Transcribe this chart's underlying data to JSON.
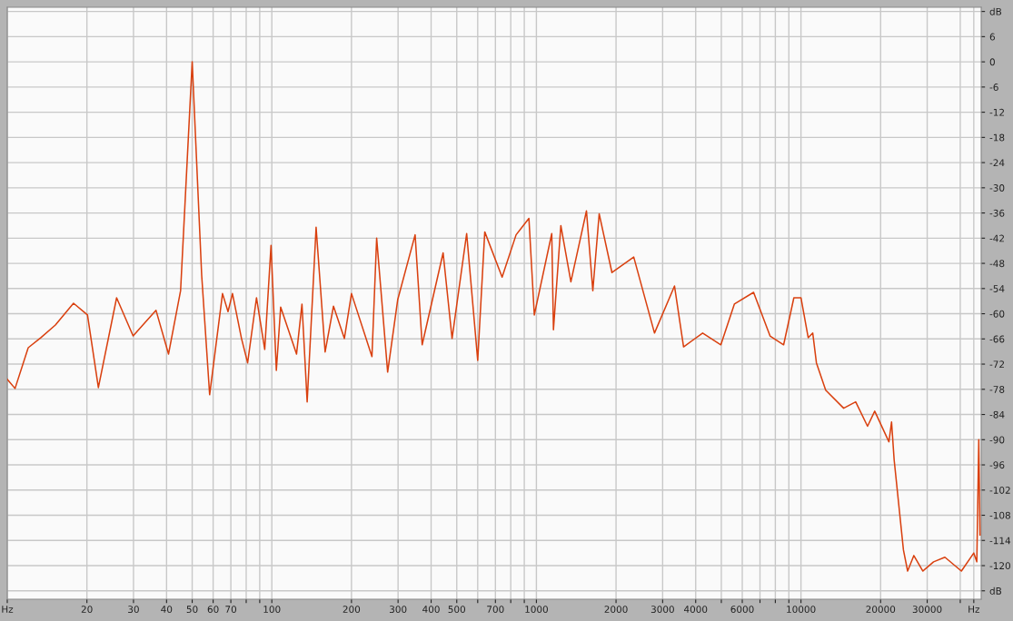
{
  "chart_data": {
    "type": "line",
    "log": "x",
    "grid": true,
    "legend": false,
    "marker": "none",
    "line_style": "solid",
    "xlim": [
      10,
      48000
    ],
    "ylim": [
      -128,
      13
    ],
    "xticks": [
      {
        "value": 10,
        "label": "Hz"
      },
      20,
      30,
      40,
      50,
      60,
      70,
      {
        "value": 80,
        "label": null
      },
      {
        "value": 90,
        "label": null
      },
      100,
      200,
      300,
      400,
      500,
      {
        "value": 600,
        "label": null
      },
      700,
      {
        "value": 800,
        "label": null
      },
      {
        "value": 900,
        "label": null
      },
      1000,
      2000,
      3000,
      4000,
      {
        "value": 5000,
        "label": null
      },
      6000,
      {
        "value": 7000,
        "label": null
      },
      {
        "value": 8000,
        "label": null
      },
      {
        "value": 9000,
        "label": null
      },
      10000,
      20000,
      30000,
      {
        "value": 40000,
        "label": null
      },
      {
        "value": 45000,
        "label": "Hz"
      }
    ],
    "yticks": [
      {
        "value": 12,
        "label": "dB"
      },
      6,
      0,
      -6,
      -12,
      -18,
      -24,
      -30,
      -36,
      -42,
      -48,
      -54,
      -60,
      -66,
      -72,
      -78,
      -84,
      -90,
      -96,
      -102,
      -108,
      -114,
      -120,
      {
        "value": -126,
        "label": "dB"
      }
    ],
    "series": [
      {
        "color": "#d9400f",
        "x": [
          10,
          10.7,
          12.0,
          13.4,
          15.2,
          17.8,
          20.1,
          22.1,
          25.9,
          29.9,
          33.7,
          36.5,
          40.7,
          45.2,
          50,
          54.3,
          58.2,
          65.1,
          68.3,
          71,
          76.8,
          81,
          87.5,
          94,
          99.3,
          104,
          108,
          124,
          130,
          136,
          147,
          159,
          171,
          188,
          200,
          239,
          249,
          274,
          299,
          348,
          370,
          444,
          480,
          545,
          600,
          638,
          742,
          838,
          937,
          982,
          1143,
          1160,
          1237,
          1350,
          1546,
          1634,
          1727,
          1930,
          2333,
          2795,
          3327,
          3600,
          4250,
          4980,
          5600,
          6620,
          7640,
          8600,
          9400,
          10000,
          10650,
          11080,
          11440,
          12400,
          14500,
          16100,
          17850,
          19000,
          21500,
          22000,
          22500,
          24400,
          25300,
          26700,
          28900,
          31700,
          35000,
          40400,
          45000,
          46200,
          47000,
          47500
        ],
        "values": [
          -75.6,
          -77.8,
          -68.1,
          -65.7,
          -62.7,
          -57.5,
          -60.3,
          -77.6,
          -56.2,
          -65.3,
          -61.6,
          -59.2,
          -69.6,
          -54.5,
          0,
          -50.8,
          -79.3,
          -55.2,
          -59.5,
          -55.2,
          -65.9,
          -71.7,
          -56.2,
          -68.5,
          -43.7,
          -73.5,
          -58.4,
          -69.6,
          -57.7,
          -81,
          -39.4,
          -69.1,
          -58.2,
          -65.9,
          -55.2,
          -70.2,
          -42,
          -73.9,
          -56.7,
          -41.2,
          -67.4,
          -45.5,
          -65.9,
          -40.9,
          -71.1,
          -40.5,
          -51.3,
          -41.2,
          -37.3,
          -60.3,
          -40.9,
          -63.8,
          -39,
          -52.4,
          -35.5,
          -54.5,
          -36.2,
          -50.2,
          -46.5,
          -64.6,
          -53.4,
          -67.9,
          -64.6,
          -67.4,
          -57.7,
          -54.9,
          -65.3,
          -67.4,
          -56.2,
          -56.2,
          -65.7,
          -64.6,
          -71.7,
          -78.2,
          -82.5,
          -81,
          -86.8,
          -83.2,
          -90.5,
          -85.8,
          -94.8,
          -116.3,
          -121.3,
          -117.6,
          -121.3,
          -119.1,
          -118,
          -121.3,
          -117,
          -119.1,
          -90,
          -112.7
        ]
      }
    ]
  }
}
